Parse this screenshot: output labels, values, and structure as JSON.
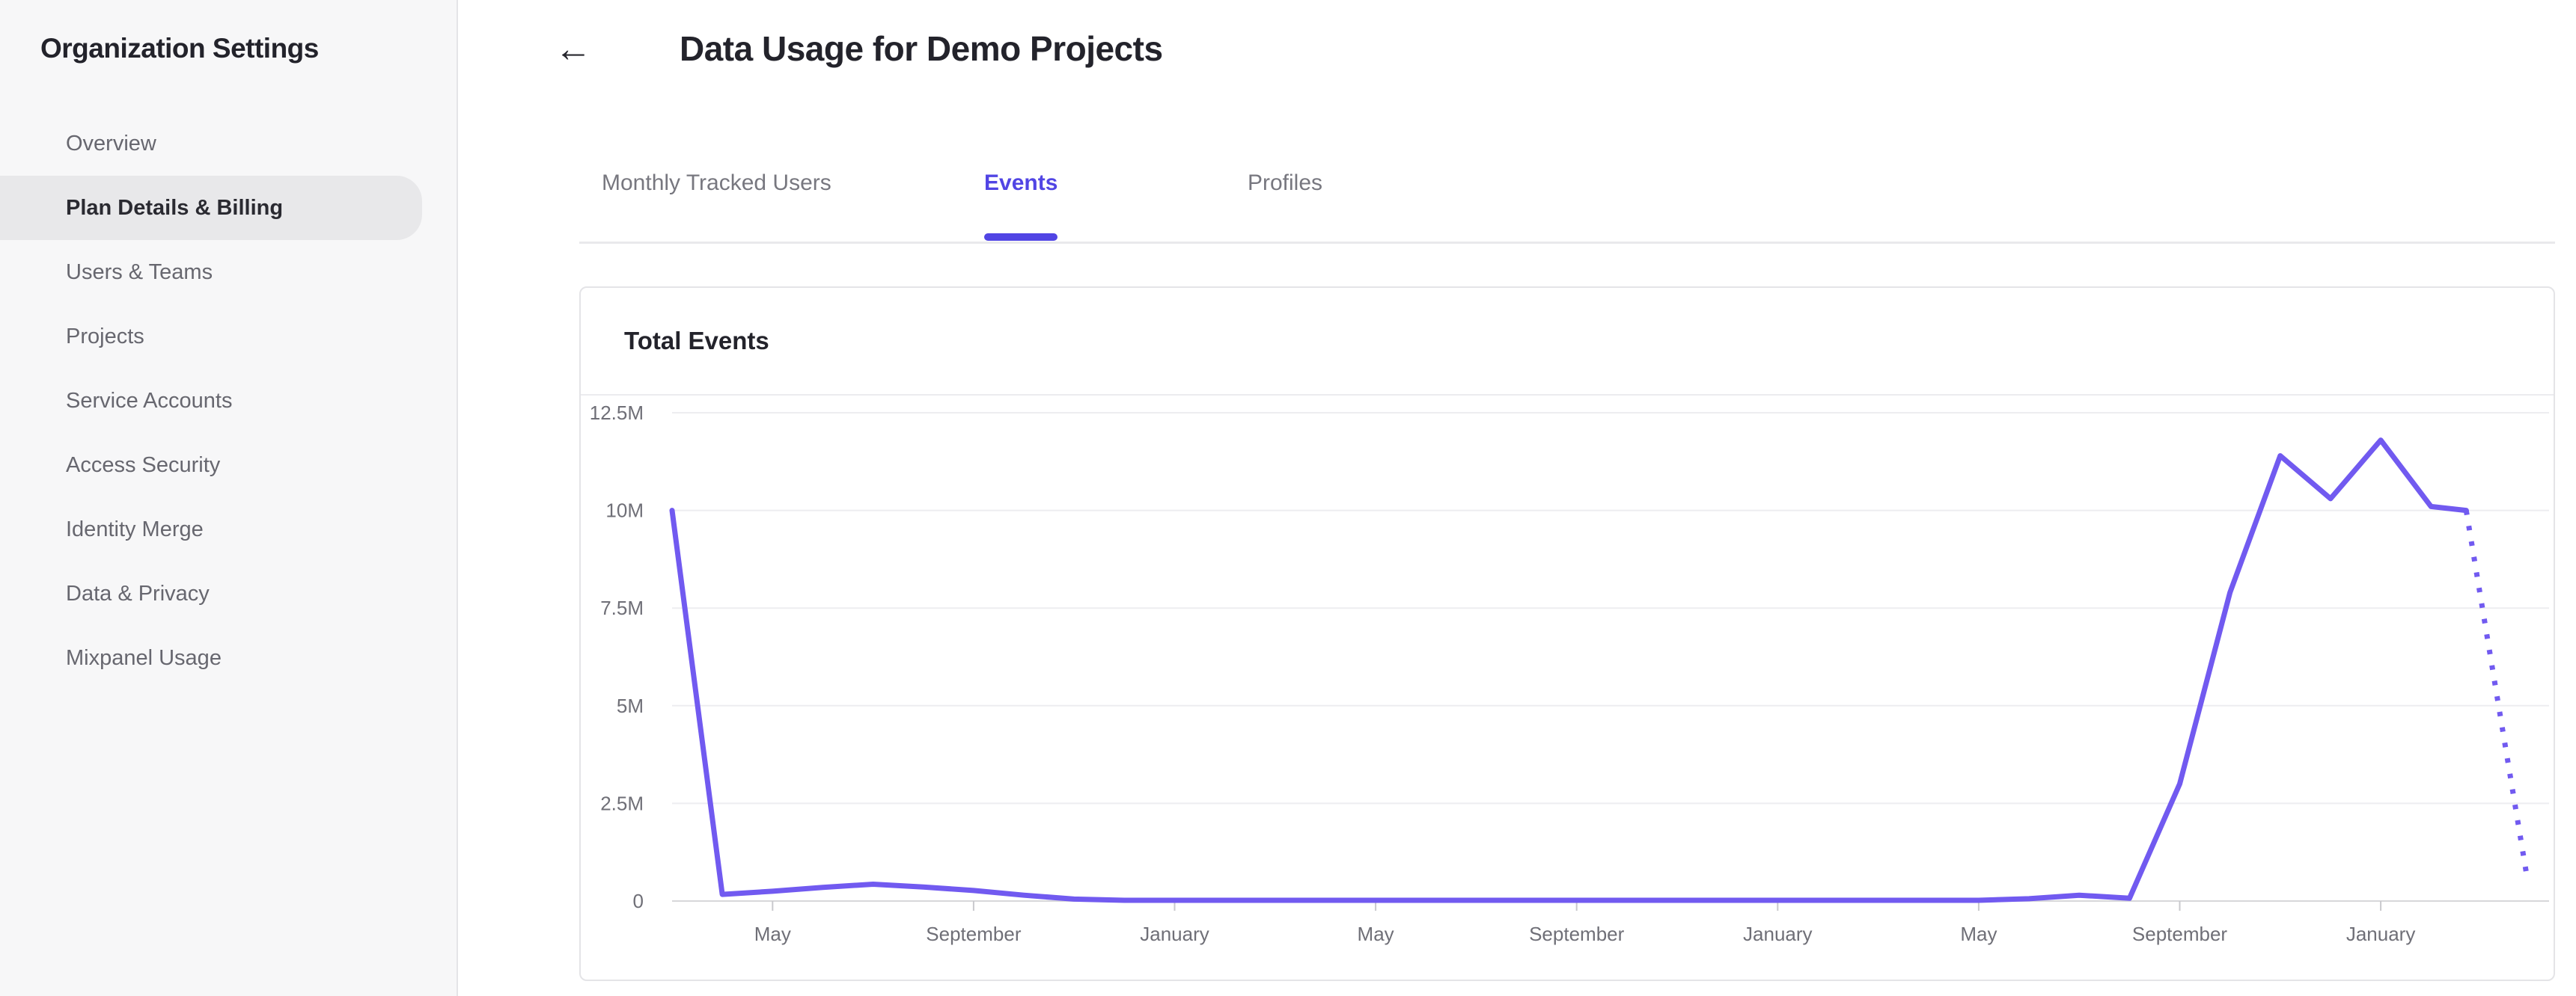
{
  "sidebar": {
    "title": "Organization Settings",
    "items": [
      {
        "label": "Overview",
        "selected": false
      },
      {
        "label": "Plan Details & Billing",
        "selected": true
      },
      {
        "label": "Users & Teams",
        "selected": false
      },
      {
        "label": "Projects",
        "selected": false
      },
      {
        "label": "Service Accounts",
        "selected": false
      },
      {
        "label": "Access Security",
        "selected": false
      },
      {
        "label": "Identity Merge",
        "selected": false
      },
      {
        "label": "Data & Privacy",
        "selected": false
      },
      {
        "label": "Mixpanel Usage",
        "selected": false
      }
    ]
  },
  "header": {
    "back_icon": "←",
    "title": "Data Usage for Demo Projects"
  },
  "tabs": [
    {
      "label": "Monthly Tracked Users",
      "active": false
    },
    {
      "label": "Events",
      "active": true
    },
    {
      "label": "Profiles",
      "active": false
    }
  ],
  "card": {
    "title": "Total Events"
  },
  "colors": {
    "accent": "#5145e4",
    "line": "#715af0",
    "grid": "#ededf0",
    "axis": "#d7d7da",
    "tick": "#c9c9cd",
    "axis_text": "#6f6f77",
    "sidebar_bg": "#f7f7f8",
    "selected_pill": "#e8e8ea"
  },
  "chart_data": {
    "type": "line",
    "title": "Total Events",
    "unit": "M",
    "ylim": [
      0,
      12.5
    ],
    "y_tick_values": [
      0,
      2.5,
      5,
      7.5,
      10,
      12.5
    ],
    "y_tick_labels": [
      "0",
      "2.5M",
      "5M",
      "7.5M",
      "10M",
      "12.5M"
    ],
    "x_tick_indices": [
      2,
      6,
      10,
      14,
      18,
      22,
      26,
      30,
      34
    ],
    "x_tick_labels": [
      "May",
      "September",
      "January",
      "May",
      "September",
      "January",
      "May",
      "September",
      "January"
    ],
    "grid": true,
    "legend": "none",
    "series": [
      {
        "name": "Total Events (millions)",
        "solid_points": [
          [
            0,
            10.0
          ],
          [
            1,
            0.17
          ],
          [
            2,
            0.25
          ],
          [
            3,
            0.35
          ],
          [
            4,
            0.43
          ],
          [
            5,
            0.36
          ],
          [
            6,
            0.27
          ],
          [
            7,
            0.15
          ],
          [
            8,
            0.05
          ],
          [
            9,
            0.02
          ],
          [
            10,
            0.02
          ],
          [
            11,
            0.02
          ],
          [
            12,
            0.02
          ],
          [
            13,
            0.02
          ],
          [
            14,
            0.02
          ],
          [
            15,
            0.02
          ],
          [
            16,
            0.02
          ],
          [
            17,
            0.02
          ],
          [
            18,
            0.02
          ],
          [
            19,
            0.02
          ],
          [
            20,
            0.02
          ],
          [
            21,
            0.02
          ],
          [
            22,
            0.02
          ],
          [
            23,
            0.02
          ],
          [
            24,
            0.02
          ],
          [
            25,
            0.02
          ],
          [
            26,
            0.02
          ],
          [
            27,
            0.06
          ],
          [
            28,
            0.15
          ],
          [
            29,
            0.07
          ],
          [
            30,
            3.0
          ],
          [
            31,
            7.9
          ],
          [
            32,
            11.4
          ],
          [
            33,
            10.3
          ],
          [
            34,
            11.8
          ],
          [
            35,
            10.1
          ],
          [
            35.7,
            10.0
          ]
        ],
        "dotted_points": [
          [
            35.7,
            10.0
          ],
          [
            36.9,
            0.7
          ]
        ],
        "dotted_tail_style": "dotted"
      }
    ]
  }
}
